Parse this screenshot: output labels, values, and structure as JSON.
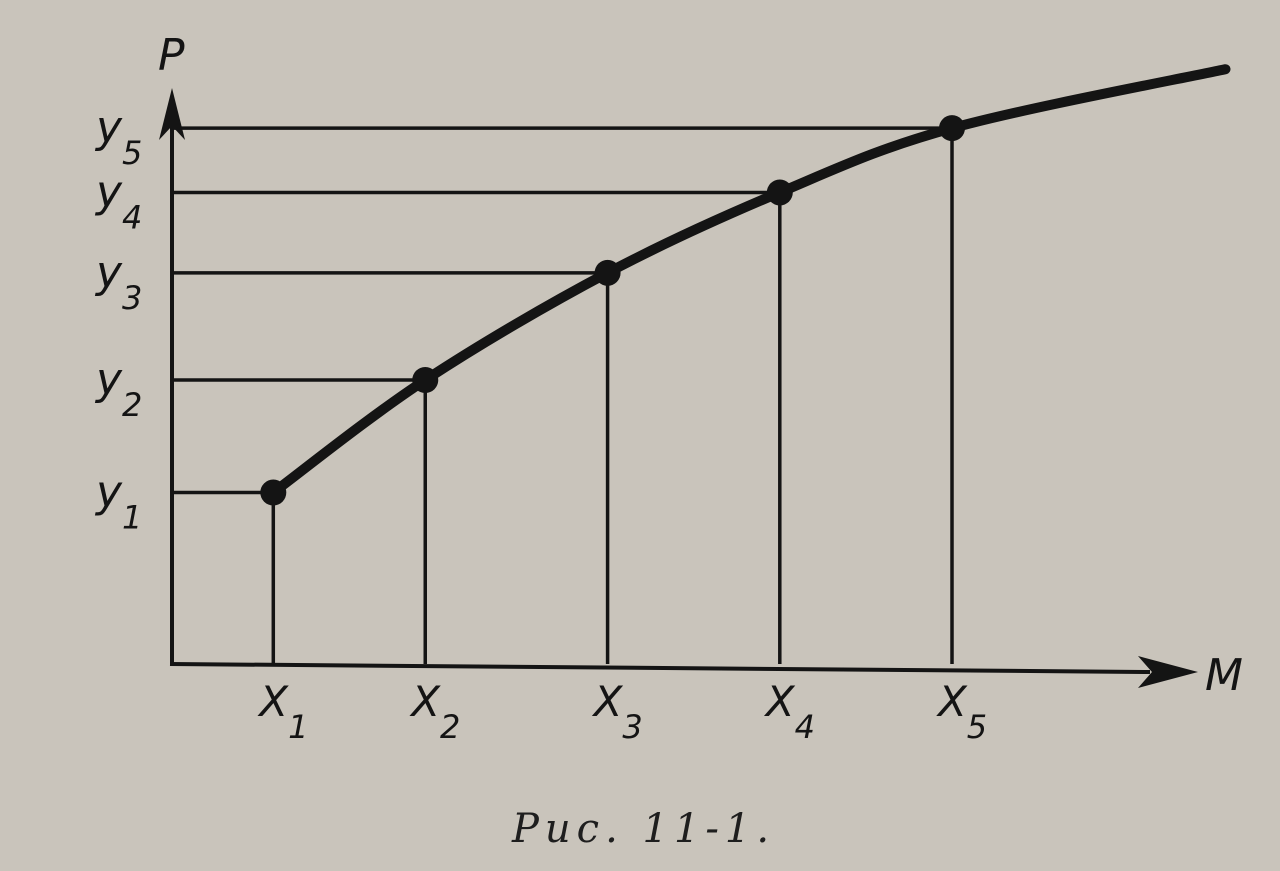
{
  "chart_data": {
    "type": "line",
    "title": "",
    "caption": "Рис. 11-1.",
    "xlabel": "M",
    "ylabel": "P",
    "grid": false,
    "legend": "none",
    "x_tick_labels": [
      {
        "base": "X",
        "sub": "1"
      },
      {
        "base": "X",
        "sub": "2"
      },
      {
        "base": "X",
        "sub": "3"
      },
      {
        "base": "X",
        "sub": "4"
      },
      {
        "base": "X",
        "sub": "5"
      }
    ],
    "y_tick_labels": [
      {
        "base": "y",
        "sub": "1"
      },
      {
        "base": "y",
        "sub": "2"
      },
      {
        "base": "y",
        "sub": "3"
      },
      {
        "base": "y",
        "sub": "4"
      },
      {
        "base": "y",
        "sub": "5"
      }
    ],
    "xlim": [
      0,
      10
    ],
    "ylim": [
      0,
      5.3
    ],
    "points": [
      {
        "x": 1.0,
        "y": 1.6
      },
      {
        "x": 2.5,
        "y": 2.65
      },
      {
        "x": 4.3,
        "y": 3.65
      },
      {
        "x": 6.0,
        "y": 4.4
      },
      {
        "x": 7.7,
        "y": 5.0
      }
    ],
    "curve": [
      {
        "x": 1.0,
        "y": 1.6
      },
      {
        "x": 2.5,
        "y": 2.65
      },
      {
        "x": 4.3,
        "y": 3.65
      },
      {
        "x": 6.0,
        "y": 4.4
      },
      {
        "x": 7.7,
        "y": 5.0
      },
      {
        "x": 10.4,
        "y": 5.55
      }
    ],
    "series": [
      {
        "values": [
          1.6,
          2.65,
          3.65,
          4.4,
          5.0
        ]
      }
    ],
    "colors": {
      "background": "#c9c4bb",
      "ink": "#141414"
    }
  }
}
